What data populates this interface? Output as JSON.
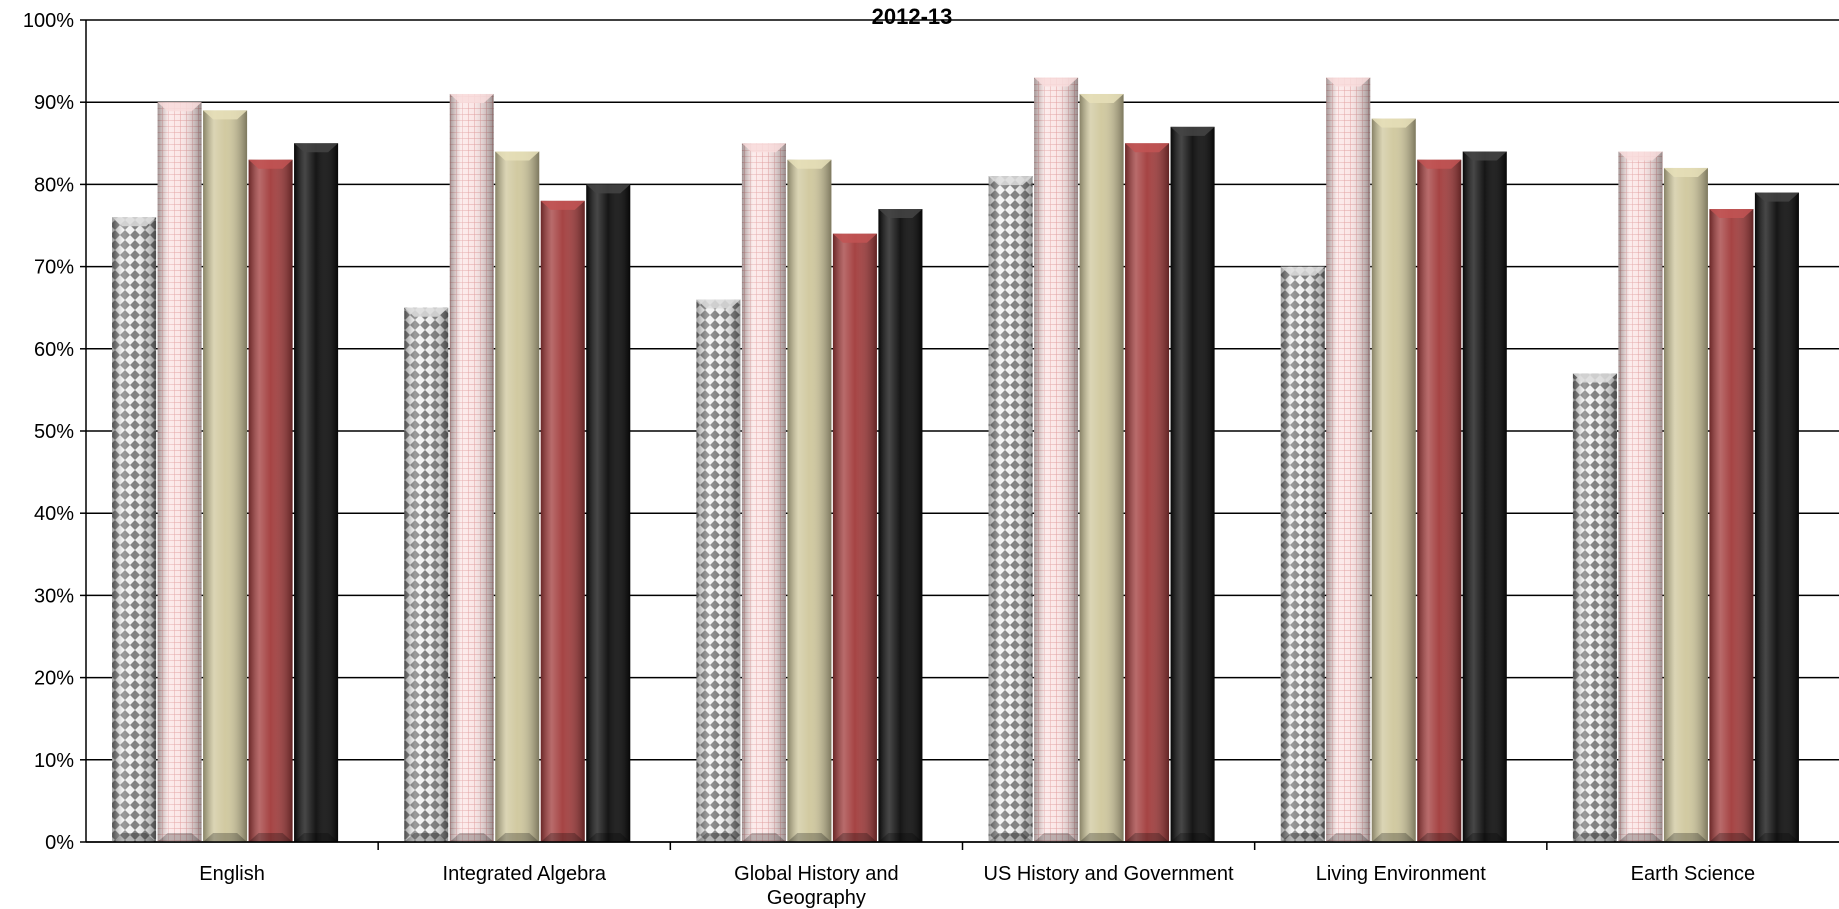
{
  "chart_data": {
    "type": "bar",
    "title": "2012-13",
    "categories": [
      "English",
      "Integrated Algebra",
      "Global History and Geography",
      "US History and Government",
      "Living Environment",
      "Earth Science"
    ],
    "category_lines": [
      [
        "English"
      ],
      [
        "Integrated Algebra"
      ],
      [
        "Global History and",
        "Geography"
      ],
      [
        "US History and Government"
      ],
      [
        "Living Environment"
      ],
      [
        "Earth Science"
      ]
    ],
    "series": [
      {
        "values": [
          76,
          65,
          66,
          81,
          70,
          57
        ]
      },
      {
        "values": [
          90,
          91,
          85,
          93,
          93,
          84
        ]
      },
      {
        "values": [
          89,
          84,
          83,
          91,
          88,
          82
        ]
      },
      {
        "values": [
          83,
          78,
          74,
          85,
          83,
          77
        ]
      },
      {
        "values": [
          85,
          80,
          77,
          87,
          84,
          79
        ]
      }
    ],
    "ylim": [
      0,
      100
    ],
    "y_ticks": [
      0,
      10,
      20,
      30,
      40,
      50,
      60,
      70,
      80,
      90,
      100
    ],
    "y_tick_labels": [
      "0%",
      "10%",
      "20%",
      "30%",
      "40%",
      "50%",
      "60%",
      "70%",
      "80%",
      "90%",
      "100%"
    ],
    "grid": true,
    "colors": {
      "series_1": "#9a9a9a",
      "series_2": "#f4c6c6",
      "series_3": "#cfc79c",
      "series_4": "#a13a3a",
      "series_5": "#0a0a0a"
    }
  }
}
